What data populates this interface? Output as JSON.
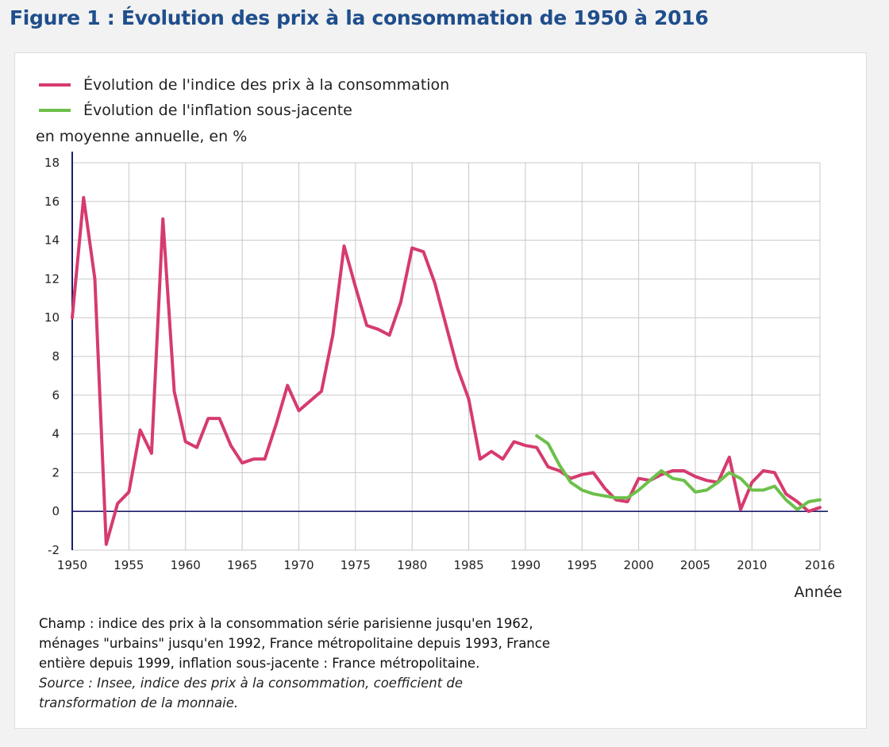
{
  "title": "Figure 1 : Évolution des prix à la consommation de 1950 à 2016",
  "legend": [
    {
      "label": "Évolution de l'indice des prix à la consommation",
      "color": "#d63b6e"
    },
    {
      "label": "Évolution de l'inflation sous-jacente",
      "color": "#6cc04a"
    }
  ],
  "y_unit": "en moyenne annuelle, en %",
  "x_title": "Année",
  "notes": {
    "champ": "Champ : indice des prix à la consommation série parisienne jusqu'en 1962,\nménages \"urbains\" jusqu'en 1992, France métropolitaine depuis 1993, France\nentière depuis 1999, inflation sous-jacente : France métropolitaine.",
    "source": "Source : Insee, indice des prix à la consommation, coefficient de\ntransformation de la monnaie."
  },
  "chart_data": {
    "type": "line",
    "title": "Figure 1 : Évolution des prix à la consommation de 1950 à 2016",
    "xlabel": "Année",
    "ylabel": "en moyenne annuelle, en %",
    "xlim": [
      1950,
      2016
    ],
    "ylim": [
      -2,
      18
    ],
    "x_ticks": [
      "1950",
      "1955",
      "1960",
      "1965",
      "1970",
      "1975",
      "1980",
      "1985",
      "1990",
      "1995",
      "2000",
      "2005",
      "2010",
      "2016"
    ],
    "y_ticks": [
      "18",
      "16",
      "14",
      "12",
      "10",
      "8",
      "6",
      "4",
      "2",
      "0",
      "-2"
    ],
    "grid": true,
    "legend_position": "top-left",
    "series": [
      {
        "name": "Évolution de l'indice des prix à la consommation",
        "color": "#d63b6e",
        "x": [
          1950,
          1951,
          1952,
          1953,
          1954,
          1955,
          1956,
          1957,
          1958,
          1959,
          1960,
          1961,
          1962,
          1963,
          1964,
          1965,
          1966,
          1967,
          1968,
          1969,
          1970,
          1971,
          1972,
          1973,
          1974,
          1975,
          1976,
          1977,
          1978,
          1979,
          1980,
          1981,
          1982,
          1983,
          1984,
          1985,
          1986,
          1987,
          1988,
          1989,
          1990,
          1991,
          1992,
          1993,
          1994,
          1995,
          1996,
          1997,
          1998,
          1999,
          2000,
          2001,
          2002,
          2003,
          2004,
          2005,
          2006,
          2007,
          2008,
          2009,
          2010,
          2011,
          2012,
          2013,
          2014,
          2015,
          2016
        ],
        "values": [
          10.0,
          16.2,
          12.0,
          -1.7,
          0.4,
          1.0,
          4.2,
          3.0,
          15.1,
          6.2,
          3.6,
          3.3,
          4.8,
          4.8,
          3.4,
          2.5,
          2.7,
          2.7,
          4.5,
          6.5,
          5.2,
          5.7,
          6.2,
          9.1,
          13.7,
          11.6,
          9.6,
          9.4,
          9.1,
          10.8,
          13.6,
          13.4,
          11.8,
          9.6,
          7.4,
          5.8,
          2.7,
          3.1,
          2.7,
          3.6,
          3.4,
          3.3,
          2.3,
          2.1,
          1.7,
          1.9,
          2.0,
          1.2,
          0.6,
          0.5,
          1.7,
          1.6,
          1.9,
          2.1,
          2.1,
          1.8,
          1.6,
          1.5,
          2.8,
          0.1,
          1.5,
          2.1,
          2.0,
          0.9,
          0.5,
          0.0,
          0.2
        ]
      },
      {
        "name": "Évolution de l'inflation sous-jacente",
        "color": "#6cc04a",
        "x": [
          1991,
          1992,
          1993,
          1994,
          1995,
          1996,
          1997,
          1998,
          1999,
          2000,
          2001,
          2002,
          2003,
          2004,
          2005,
          2006,
          2007,
          2008,
          2009,
          2010,
          2011,
          2012,
          2013,
          2014,
          2015,
          2016
        ],
        "values": [
          3.9,
          3.5,
          2.4,
          1.5,
          1.1,
          0.9,
          0.8,
          0.7,
          0.7,
          1.1,
          1.6,
          2.1,
          1.7,
          1.6,
          1.0,
          1.1,
          1.5,
          2.0,
          1.7,
          1.1,
          1.1,
          1.3,
          0.6,
          0.1,
          0.5,
          0.6
        ]
      }
    ]
  }
}
